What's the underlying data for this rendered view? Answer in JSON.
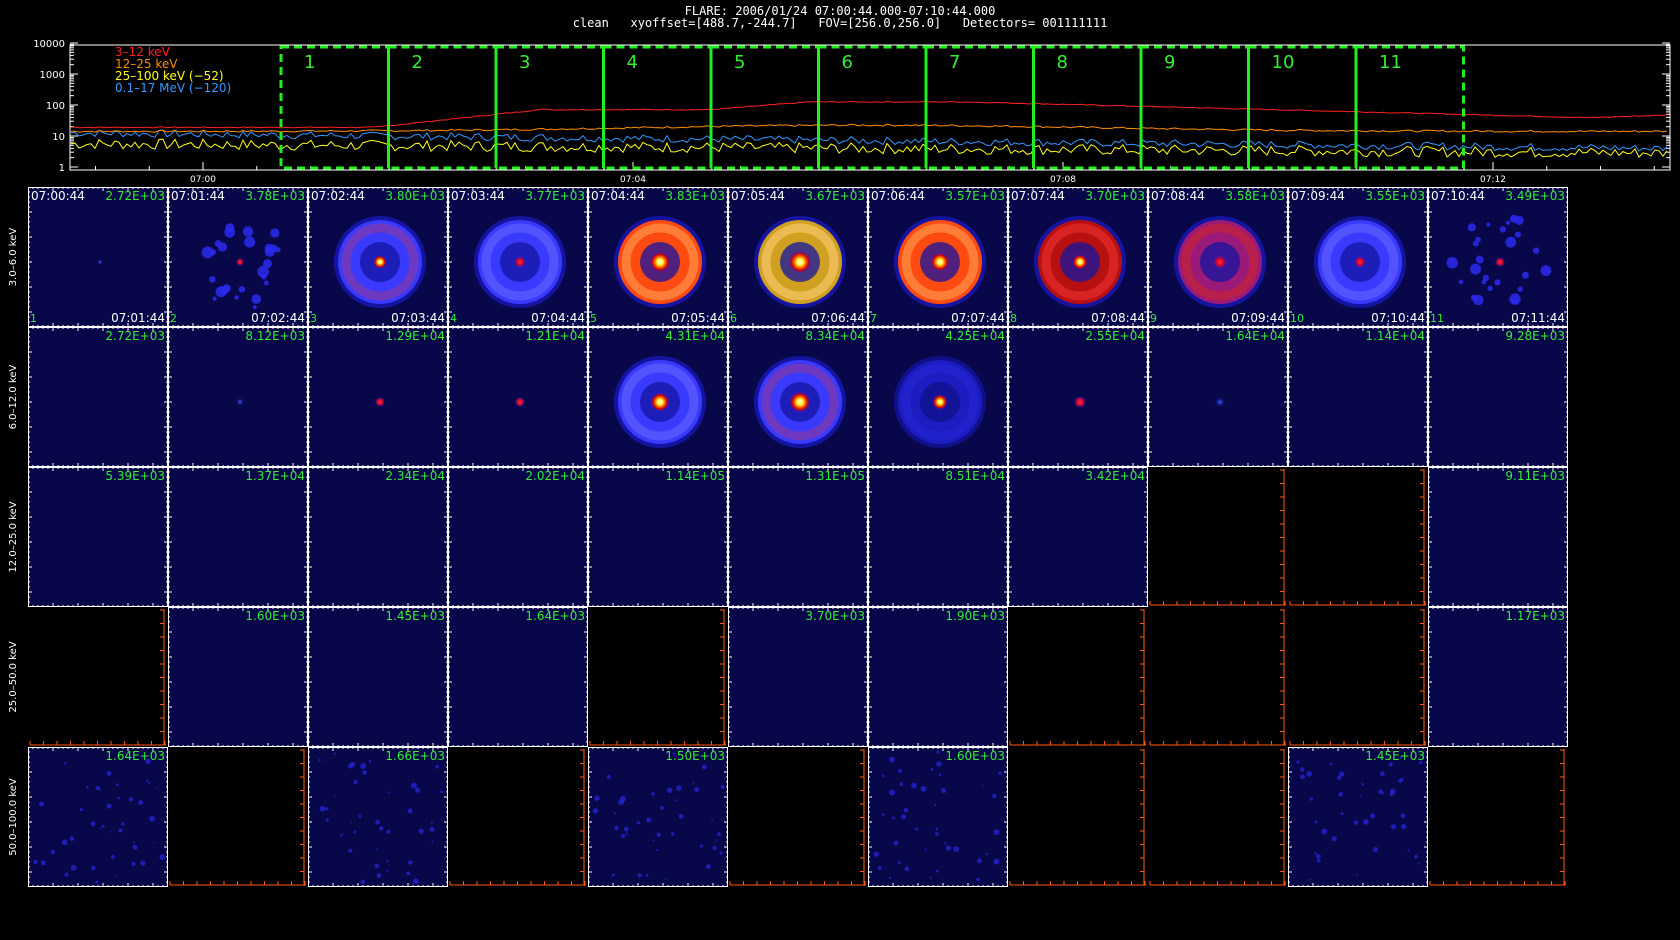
{
  "header": {
    "title": "FLARE: 2006/01/24 07:00:44.000-07:10:44.000",
    "params": "clean   xyoffset=[488.7,-244.7]   FOV=[256.0,256.0]   Detectors= 001111111"
  },
  "colors": {
    "grid": "#ffffff",
    "label": "#33ee33",
    "box": "#22ee22",
    "empty_axis": "#ff5a10"
  },
  "lightcurve": {
    "y_ticks": [
      "10000",
      "1000",
      "100",
      "10",
      "1"
    ],
    "x_ticks": [
      "07:00",
      "07:04",
      "07:08",
      "07:12"
    ],
    "legend": [
      {
        "label": "3–12 keV",
        "color": "#ff2020"
      },
      {
        "label": "12–25 keV",
        "color": "#ff8c00"
      },
      {
        "label": "25–100 keV (−52)",
        "color": "#ffff20"
      },
      {
        "label": "0.1–17 MeV (−120)",
        "color": "#3399ff"
      }
    ],
    "intervals": [
      "1",
      "2",
      "3",
      "4",
      "5",
      "6",
      "7",
      "8",
      "9",
      "10",
      "11"
    ]
  },
  "timestamps": {
    "start": [
      "07:00:44",
      "07:01:44",
      "07:02:44",
      "07:03:44",
      "07:04:44",
      "07:05:44",
      "07:06:44",
      "07:07:44",
      "07:08:44",
      "07:09:44",
      "07:10:44"
    ],
    "end": [
      "07:01:44",
      "07:02:44",
      "07:03:44",
      "07:04:44",
      "07:05:44",
      "07:06:44",
      "07:07:44",
      "07:08:44",
      "07:09:44",
      "07:10:44",
      "07:11:44"
    ]
  },
  "bands": [
    {
      "label": "3.0–6.0 keV",
      "values": [
        "2.72E+03",
        "3.78E+03",
        "3.80E+03",
        "3.77E+03",
        "3.83E+03",
        "3.67E+03",
        "3.57E+03",
        "3.70E+03",
        "3.58E+03",
        "3.55E+03",
        "3.49E+03"
      ]
    },
    {
      "label": "6.0–12.0 keV",
      "values": [
        "2.72E+03",
        "8.12E+03",
        "1.29E+04",
        "1.21E+04",
        "4.31E+04",
        "8.34E+04",
        "4.25E+04",
        "2.55E+04",
        "1.64E+04",
        "1.14E+04",
        "9.28E+03"
      ]
    },
    {
      "label": "12.0–25.0 keV",
      "values": [
        "5.39E+03",
        "1.37E+04",
        "2.34E+04",
        "2.02E+04",
        "1.14E+05",
        "1.31E+05",
        "8.51E+04",
        "3.42E+04",
        "",
        "",
        "9.11E+03"
      ]
    },
    {
      "label": "25.0–50.0 keV",
      "values": [
        "",
        "1.60E+03",
        "1.45E+03",
        "1.64E+03",
        "",
        "3.70E+03",
        "1.90E+03",
        "",
        "",
        "",
        "1.17E+03"
      ]
    },
    {
      "label": "50.0–100.0 keV",
      "values": [
        "1.64E+03",
        "",
        "1.66E+03",
        "",
        "1.50E+03",
        "",
        "1.60E+03",
        "",
        "",
        "1.45E+03",
        ""
      ]
    }
  ]
}
